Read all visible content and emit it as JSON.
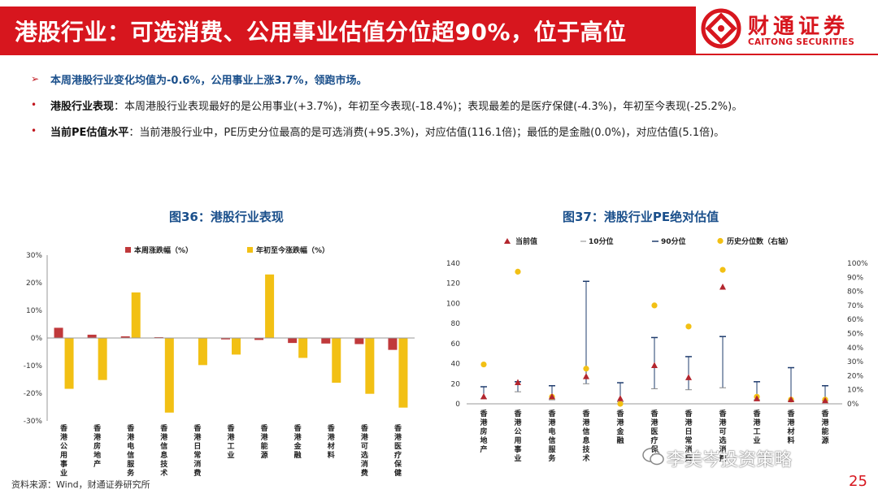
{
  "header": {
    "title": "港股行业：可选消费、公用事业估值分位超90%，位于高位",
    "logo_cn": "财通证券",
    "logo_en": "CAITONG SECURITIES",
    "accent_color": "#d7161e"
  },
  "bullets": {
    "lead": "本周港股行业变化均值为-0.6%，公用事业上涨3.7%，领跑市场。",
    "item1_key": "港股行业表现",
    "item1_text": "：本周港股行业表现最好的是公用事业(+3.7%)，年初至今表现(-18.4%)；表现最差的是医疗保健(-4.3%)，年初至今表现(-25.2%)。",
    "item2_key": "当前PE估值水平",
    "item2_text": "：当前港股行业中，PE历史分位最高的是可选消费(+95.3%)，对应估值(116.1倍)；最低的是金融(0.0%)，对应估值(5.1倍)。"
  },
  "fig36": {
    "title": "图36：港股行业表现"
  },
  "fig37": {
    "title": "图37：港股行业PE绝对估值"
  },
  "chart_data": [
    {
      "type": "bar",
      "title": "图36：港股行业表现",
      "categories": [
        "香港公用事业",
        "香港房地产",
        "香港电信服务",
        "香港信息技术",
        "香港日常消费",
        "香港工业",
        "香港能源",
        "香港金融",
        "香港材料",
        "香港可选消费",
        "香港医疗保健"
      ],
      "series": [
        {
          "name": "本周涨跌幅（%）",
          "color": "#c0393b",
          "values": [
            3.7,
            1.2,
            0.6,
            0.3,
            0.0,
            -0.5,
            -0.7,
            -1.8,
            -2.0,
            -2.2,
            -4.3
          ]
        },
        {
          "name": "年初至今涨跌幅（%）",
          "color": "#f2c014",
          "values": [
            -18.4,
            -15.2,
            16.5,
            -27.0,
            -9.8,
            -6.0,
            23.0,
            -7.2,
            -16.2,
            -20.2,
            -25.2
          ]
        }
      ],
      "yticks": [
        "30%",
        "20%",
        "10%",
        "0%",
        "-10%",
        "-20%",
        "-30%"
      ],
      "ylim": [
        -30,
        30
      ],
      "legend_position": "top"
    },
    {
      "type": "scatter",
      "title": "图37：港股行业PE绝对估值",
      "categories": [
        "香港房地产",
        "香港公用事业",
        "香港电信服务",
        "香港信息技术",
        "香港金融",
        "香港医疗保健",
        "香港日常消费",
        "香港可选消费",
        "香港工业",
        "香港材料",
        "香港能源"
      ],
      "legend": [
        "当前值",
        "10分位",
        "90分位",
        "历史分位数（右轴）"
      ],
      "current": [
        7,
        21,
        7,
        27,
        5.1,
        38,
        26,
        116.1,
        5,
        4,
        3
      ],
      "p10": [
        5,
        12,
        4,
        20,
        2,
        15,
        14,
        16,
        4,
        3,
        3
      ],
      "p90": [
        17,
        22,
        18,
        122,
        21,
        66,
        47,
        67,
        22,
        36,
        18
      ],
      "percentile": [
        28,
        94,
        5,
        25,
        0,
        70,
        55,
        95.3,
        5,
        3,
        3
      ],
      "y_left_ticks": [
        "0",
        "20",
        "40",
        "60",
        "80",
        "100",
        "120",
        "140"
      ],
      "y_right_ticks": [
        "0%",
        "10%",
        "20%",
        "30%",
        "40%",
        "50%",
        "60%",
        "70%",
        "80%",
        "90%",
        "100%"
      ],
      "ylim_left": [
        0,
        140
      ],
      "ylim_right": [
        0,
        100
      ],
      "colors": {
        "current": "#b3262e",
        "range": "#1f3c6e",
        "percentile": "#f2c014"
      },
      "legend_position": "top"
    }
  ],
  "footer": {
    "source": "资料来源：Wind，财通证券研究所",
    "watermark": "李美岑投资策略",
    "page": "25"
  }
}
